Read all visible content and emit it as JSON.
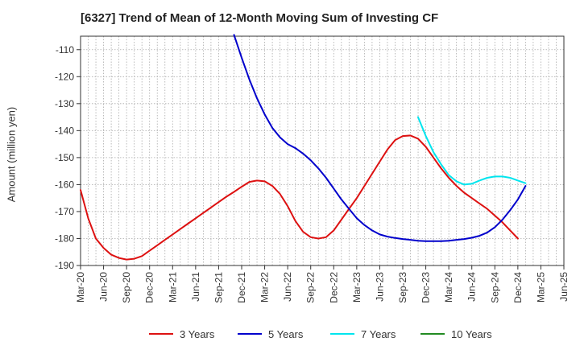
{
  "chart_data": {
    "type": "line",
    "title": "[6327]  Trend of Mean of 12-Month Moving Sum of Investing CF",
    "xlabel": "",
    "ylabel": "Amount (million yen)",
    "ylim": [
      -190,
      -105
    ],
    "yticks": [
      -110,
      -120,
      -130,
      -140,
      -150,
      -160,
      -170,
      -180,
      -190
    ],
    "x_tick_labels": [
      "Mar-20",
      "Jun-20",
      "Sep-20",
      "Dec-20",
      "Mar-21",
      "Jun-21",
      "Sep-21",
      "Dec-21",
      "Mar-22",
      "Jun-22",
      "Sep-22",
      "Dec-22",
      "Mar-23",
      "Jun-23",
      "Sep-23",
      "Dec-23",
      "Mar-24",
      "Jun-24",
      "Sep-24",
      "Dec-24",
      "Mar-25",
      "Jun-25"
    ],
    "x_range_months": [
      "2020-03",
      "2025-06"
    ],
    "grid": true,
    "legend_position": "bottom",
    "series": [
      {
        "name": "3 Years",
        "color": "#dd1111",
        "points": [
          [
            "2020-03",
            -162
          ],
          [
            "2020-04",
            -172.5
          ],
          [
            "2020-05",
            -180
          ],
          [
            "2020-06",
            -183.5
          ],
          [
            "2020-07",
            -186
          ],
          [
            "2020-08",
            -187.2
          ],
          [
            "2020-09",
            -187.8
          ],
          [
            "2020-10",
            -187.5
          ],
          [
            "2020-11",
            -186.5
          ],
          [
            "2020-12",
            -184.5
          ],
          [
            "2021-01",
            -182.5
          ],
          [
            "2021-02",
            -180.5
          ],
          [
            "2021-03",
            -178.5
          ],
          [
            "2021-04",
            -176.5
          ],
          [
            "2021-05",
            -174.5
          ],
          [
            "2021-06",
            -172.5
          ],
          [
            "2021-07",
            -170.5
          ],
          [
            "2021-08",
            -168.5
          ],
          [
            "2021-09",
            -166.5
          ],
          [
            "2021-10",
            -164.5
          ],
          [
            "2021-11",
            -162.7
          ],
          [
            "2021-12",
            -160.8
          ],
          [
            "2022-01",
            -159
          ],
          [
            "2022-02",
            -158.5
          ],
          [
            "2022-03",
            -158.8
          ],
          [
            "2022-04",
            -160.5
          ],
          [
            "2022-05",
            -163.5
          ],
          [
            "2022-06",
            -168
          ],
          [
            "2022-07",
            -173.5
          ],
          [
            "2022-08",
            -177.5
          ],
          [
            "2022-09",
            -179.5
          ],
          [
            "2022-10",
            -180
          ],
          [
            "2022-11",
            -179.5
          ],
          [
            "2022-12",
            -177
          ],
          [
            "2023-01",
            -173
          ],
          [
            "2023-02",
            -169
          ],
          [
            "2023-03",
            -165
          ],
          [
            "2023-04",
            -160.5
          ],
          [
            "2023-05",
            -156
          ],
          [
            "2023-06",
            -151.5
          ],
          [
            "2023-07",
            -147
          ],
          [
            "2023-08",
            -143.5
          ],
          [
            "2023-09",
            -142
          ],
          [
            "2023-10",
            -141.8
          ],
          [
            "2023-11",
            -143
          ],
          [
            "2023-12",
            -146
          ],
          [
            "2024-01",
            -150
          ],
          [
            "2024-02",
            -154
          ],
          [
            "2024-03",
            -157.5
          ],
          [
            "2024-04",
            -160.5
          ],
          [
            "2024-05",
            -163
          ],
          [
            "2024-06",
            -165
          ],
          [
            "2024-07",
            -167
          ],
          [
            "2024-08",
            -169
          ],
          [
            "2024-09",
            -171.5
          ],
          [
            "2024-10",
            -174
          ],
          [
            "2024-11",
            -177
          ],
          [
            "2024-12",
            -180
          ]
        ]
      },
      {
        "name": "5 Years",
        "color": "#0000cc",
        "points": [
          [
            "2021-11",
            -104.5
          ],
          [
            "2021-12",
            -113
          ],
          [
            "2022-01",
            -121
          ],
          [
            "2022-02",
            -128
          ],
          [
            "2022-03",
            -134
          ],
          [
            "2022-04",
            -139
          ],
          [
            "2022-05",
            -142.5
          ],
          [
            "2022-06",
            -145
          ],
          [
            "2022-07",
            -146.5
          ],
          [
            "2022-08",
            -148.5
          ],
          [
            "2022-09",
            -151
          ],
          [
            "2022-10",
            -154
          ],
          [
            "2022-11",
            -157.5
          ],
          [
            "2022-12",
            -161.5
          ],
          [
            "2023-01",
            -165.5
          ],
          [
            "2023-02",
            -169
          ],
          [
            "2023-03",
            -172.5
          ],
          [
            "2023-04",
            -175
          ],
          [
            "2023-05",
            -177
          ],
          [
            "2023-06",
            -178.5
          ],
          [
            "2023-07",
            -179.3
          ],
          [
            "2023-08",
            -179.8
          ],
          [
            "2023-09",
            -180.2
          ],
          [
            "2023-10",
            -180.5
          ],
          [
            "2023-11",
            -180.8
          ],
          [
            "2023-12",
            -181
          ],
          [
            "2024-01",
            -181
          ],
          [
            "2024-02",
            -181
          ],
          [
            "2024-03",
            -180.8
          ],
          [
            "2024-04",
            -180.5
          ],
          [
            "2024-05",
            -180.2
          ],
          [
            "2024-06",
            -179.7
          ],
          [
            "2024-07",
            -179
          ],
          [
            "2024-08",
            -177.8
          ],
          [
            "2024-09",
            -175.8
          ],
          [
            "2024-10",
            -173
          ],
          [
            "2024-11",
            -169.5
          ],
          [
            "2024-12",
            -165.5
          ],
          [
            "2025-01",
            -160.5
          ]
        ]
      },
      {
        "name": "7 Years",
        "color": "#00e5ee",
        "points": [
          [
            "2023-11",
            -135
          ],
          [
            "2023-12",
            -142
          ],
          [
            "2024-01",
            -148
          ],
          [
            "2024-02",
            -152.5
          ],
          [
            "2024-03",
            -156.5
          ],
          [
            "2024-04",
            -158.8
          ],
          [
            "2024-05",
            -160
          ],
          [
            "2024-06",
            -159.7
          ],
          [
            "2024-07",
            -158.5
          ],
          [
            "2024-08",
            -157.5
          ],
          [
            "2024-09",
            -157
          ],
          [
            "2024-10",
            -157
          ],
          [
            "2024-11",
            -157.5
          ],
          [
            "2024-12",
            -158.5
          ],
          [
            "2025-01",
            -159.5
          ]
        ]
      },
      {
        "name": "10 Years",
        "color": "#228b22",
        "points": []
      }
    ]
  }
}
